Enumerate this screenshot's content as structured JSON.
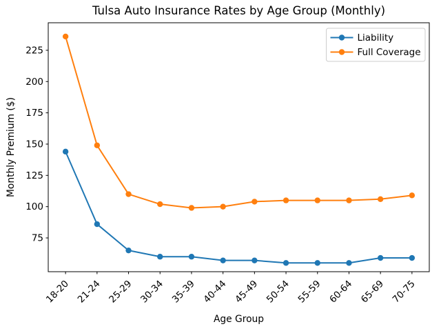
{
  "figure": {
    "background": "#ffffff",
    "text_color": "#000000",
    "spine_color": "#000000",
    "legend_border_color": "#cccccc"
  },
  "chart_data": {
    "type": "line",
    "title": "Tulsa Auto Insurance Rates by Age Group (Monthly)",
    "xlabel": "Age Group",
    "ylabel": "Monthly Premium ($)",
    "categories": [
      "18-20",
      "21-24",
      "25-29",
      "30-34",
      "35-39",
      "40-44",
      "45-49",
      "50-54",
      "55-59",
      "60-64",
      "65-69",
      "70-75"
    ],
    "series": [
      {
        "name": "Liability",
        "color": "#1f77b4",
        "values": [
          144,
          86,
          65,
          60,
          60,
          57,
          57,
          55,
          55,
          55,
          59,
          59
        ]
      },
      {
        "name": "Full Coverage",
        "color": "#ff7f0e",
        "values": [
          236,
          149,
          110,
          102,
          99,
          100,
          104,
          105,
          105,
          105,
          106,
          109
        ]
      }
    ],
    "yticks": [
      75,
      100,
      125,
      150,
      175,
      200,
      225
    ],
    "ylim": [
      48,
      247
    ],
    "xlim": [
      -0.55,
      11.55
    ],
    "xtick_rotation": 45,
    "marker": "circle",
    "grid": false,
    "legend_position": "upper right"
  }
}
